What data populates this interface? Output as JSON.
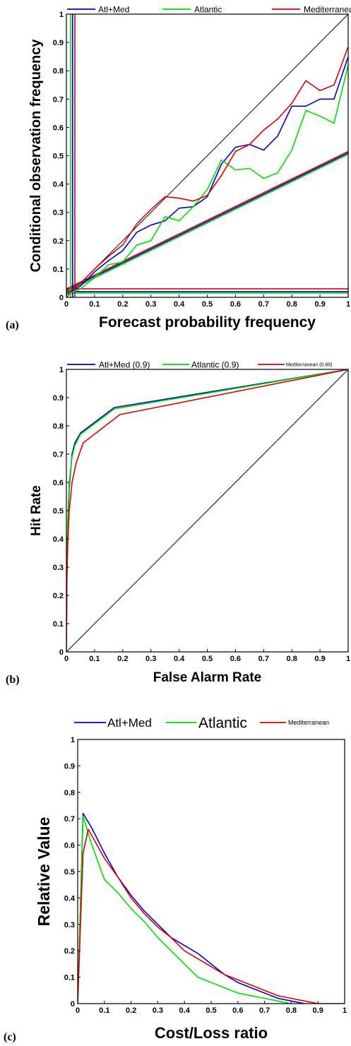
{
  "chart_data": [
    {
      "type": "line",
      "panel_label": "(a)",
      "xlabel": "Forecast probability frequency",
      "ylabel": "Conditional observation frequency",
      "xlim": [
        0,
        1
      ],
      "ylim": [
        0,
        1
      ],
      "xticks": [
        "0",
        "0.1",
        "0.2",
        "0.3",
        "0.4",
        "0.5",
        "0.6",
        "0.7",
        "0.8",
        "0.9",
        "1"
      ],
      "yticks": [
        "0",
        "0.1",
        "0.2",
        "0.3",
        "0.4",
        "0.5",
        "0.6",
        "0.7",
        "0.8",
        "0.9",
        "1"
      ],
      "legend_position": "top",
      "series": [
        {
          "name": "Atl+Med",
          "color": "#0000cc",
          "x": [
            0,
            0.05,
            0.1,
            0.15,
            0.2,
            0.25,
            0.3,
            0.35,
            0.4,
            0.45,
            0.5,
            0.55,
            0.6,
            0.65,
            0.7,
            0.75,
            0.8,
            0.85,
            0.9,
            0.95,
            1.0
          ],
          "y": [
            0.01,
            0.04,
            0.09,
            0.13,
            0.165,
            0.23,
            0.255,
            0.27,
            0.315,
            0.32,
            0.355,
            0.47,
            0.53,
            0.54,
            0.52,
            0.57,
            0.675,
            0.675,
            0.7,
            0.7,
            0.85
          ]
        },
        {
          "name": "Atlantic",
          "color": "#00dd00",
          "x": [
            0,
            0.05,
            0.1,
            0.15,
            0.2,
            0.25,
            0.3,
            0.35,
            0.4,
            0.45,
            0.5,
            0.55,
            0.6,
            0.65,
            0.7,
            0.75,
            0.8,
            0.85,
            0.9,
            0.95,
            1.0
          ],
          "y": [
            0.01,
            0.03,
            0.07,
            0.115,
            0.125,
            0.185,
            0.2,
            0.285,
            0.27,
            0.32,
            0.38,
            0.485,
            0.45,
            0.455,
            0.42,
            0.44,
            0.52,
            0.66,
            0.64,
            0.615,
            0.82
          ]
        },
        {
          "name": "Mediterranean",
          "color": "#dd0000",
          "x": [
            0,
            0.05,
            0.1,
            0.15,
            0.2,
            0.25,
            0.3,
            0.35,
            0.4,
            0.45,
            0.5,
            0.55,
            0.6,
            0.65,
            0.7,
            0.75,
            0.8,
            0.85,
            0.9,
            0.95,
            1.0
          ],
          "y": [
            0.01,
            0.05,
            0.1,
            0.145,
            0.185,
            0.26,
            0.31,
            0.355,
            0.35,
            0.34,
            0.36,
            0.43,
            0.515,
            0.54,
            0.59,
            0.63,
            0.685,
            0.765,
            0.73,
            0.75,
            0.885
          ]
        }
      ],
      "reference_lines": [
        {
          "kind": "diagonal",
          "color": "#000000",
          "from": [
            0,
            0
          ],
          "to": [
            1,
            1
          ]
        },
        {
          "kind": "no-skill",
          "color": "#00dd00",
          "from": [
            0,
            0.02
          ],
          "to": [
            1,
            0.505
          ]
        },
        {
          "kind": "no-skill",
          "color": "#0000cc",
          "from": [
            0,
            0.025
          ],
          "to": [
            1,
            0.51
          ]
        },
        {
          "kind": "no-skill",
          "color": "#dd0000",
          "from": [
            0,
            0.03
          ],
          "to": [
            1,
            0.515
          ]
        },
        {
          "kind": "climatology-h",
          "color": "#00dd00",
          "y": 0.015
        },
        {
          "kind": "climatology-h",
          "color": "#0000cc",
          "y": 0.02
        },
        {
          "kind": "climatology-h",
          "color": "#dd0000",
          "y": 0.03
        },
        {
          "kind": "climatology-v",
          "color": "#00dd00",
          "x": 0.015
        },
        {
          "kind": "climatology-v",
          "color": "#0000cc",
          "x": 0.022
        },
        {
          "kind": "climatology-v",
          "color": "#dd0000",
          "x": 0.03
        }
      ]
    },
    {
      "type": "line",
      "panel_label": "(b)",
      "xlabel": "False Alarm Rate",
      "ylabel": "Hit Rate",
      "xlim": [
        0,
        1
      ],
      "ylim": [
        0,
        1
      ],
      "xticks": [
        "0",
        "0.1",
        "0.2",
        "0.3",
        "0.4",
        "0.5",
        "0.6",
        "0.7",
        "0.8",
        "0.9",
        "1"
      ],
      "yticks": [
        "0",
        "0.1",
        "0.2",
        "0.3",
        "0.4",
        "0.5",
        "0.6",
        "0.7",
        "0.8",
        "0.9",
        "1"
      ],
      "legend_position": "top",
      "series": [
        {
          "name": "Atl+Med (0.9)",
          "color": "#0000cc",
          "x": [
            0,
            0.002,
            0.005,
            0.01,
            0.02,
            0.03,
            0.05,
            0.17,
            1.0
          ],
          "y": [
            0,
            0.3,
            0.45,
            0.58,
            0.7,
            0.74,
            0.775,
            0.865,
            1.0
          ]
        },
        {
          "name": "Atlantic (0.9)",
          "color": "#00dd00",
          "x": [
            0,
            0.002,
            0.005,
            0.01,
            0.02,
            0.03,
            0.05,
            0.17,
            1.0
          ],
          "y": [
            0,
            0.32,
            0.47,
            0.6,
            0.69,
            0.73,
            0.77,
            0.86,
            1.0
          ]
        },
        {
          "name": "Mediterranean (0.88)",
          "color": "#dd0000",
          "x": [
            0,
            0.002,
            0.005,
            0.01,
            0.02,
            0.035,
            0.06,
            0.19,
            1.0
          ],
          "y": [
            0,
            0.26,
            0.38,
            0.5,
            0.6,
            0.67,
            0.74,
            0.84,
            1.0
          ]
        }
      ],
      "reference_lines": [
        {
          "kind": "diagonal",
          "color": "#000000",
          "from": [
            0,
            0
          ],
          "to": [
            1,
            1
          ]
        }
      ]
    },
    {
      "type": "line",
      "panel_label": "(c)",
      "xlabel": "Cost/Loss ratio",
      "ylabel": "Relative Value",
      "xlim": [
        0,
        1
      ],
      "ylim": [
        0,
        1
      ],
      "xticks": [
        "0",
        "0.1",
        "0.2",
        "0.3",
        "0.4",
        "0.5",
        "0.6",
        "0.7",
        "0.8",
        "0.9",
        "1"
      ],
      "yticks": [
        "0",
        "0.1",
        "0.2",
        "0.3",
        "0.4",
        "0.5",
        "0.6",
        "0.7",
        "0.8",
        "0.9",
        "1"
      ],
      "legend_position": "top",
      "series": [
        {
          "name": "Atl+Med",
          "color": "#0000cc",
          "x": [
            0,
            0.02,
            0.05,
            0.1,
            0.15,
            0.2,
            0.25,
            0.3,
            0.35,
            0.4,
            0.45,
            0.5,
            0.55,
            0.6,
            0.65,
            0.7,
            0.75,
            0.8,
            0.85
          ],
          "y": [
            0,
            0.72,
            0.67,
            0.57,
            0.48,
            0.41,
            0.35,
            0.3,
            0.25,
            0.22,
            0.19,
            0.15,
            0.11,
            0.08,
            0.06,
            0.04,
            0.02,
            0.01,
            0
          ]
        },
        {
          "name": "Atlantic",
          "color": "#00dd00",
          "x": [
            0,
            0.02,
            0.05,
            0.1,
            0.15,
            0.2,
            0.25,
            0.3,
            0.35,
            0.4,
            0.45,
            0.5,
            0.55,
            0.6,
            0.65,
            0.7,
            0.75,
            0.8
          ],
          "y": [
            0,
            0.71,
            0.61,
            0.47,
            0.42,
            0.36,
            0.31,
            0.25,
            0.2,
            0.15,
            0.1,
            0.08,
            0.06,
            0.04,
            0.03,
            0.02,
            0.01,
            0
          ]
        },
        {
          "name": "Mediterranean",
          "color": "#dd0000",
          "x": [
            0,
            0.02,
            0.04,
            0.1,
            0.15,
            0.2,
            0.25,
            0.3,
            0.35,
            0.4,
            0.45,
            0.5,
            0.55,
            0.6,
            0.65,
            0.7,
            0.75,
            0.8,
            0.85,
            0.9,
            0.95,
            1.0
          ],
          "y": [
            0,
            0.57,
            0.66,
            0.55,
            0.48,
            0.4,
            0.34,
            0.29,
            0.25,
            0.2,
            0.17,
            0.14,
            0.11,
            0.09,
            0.07,
            0.05,
            0.03,
            0.02,
            0.01,
            0,
            0,
            0
          ]
        }
      ],
      "reference_lines": []
    }
  ]
}
